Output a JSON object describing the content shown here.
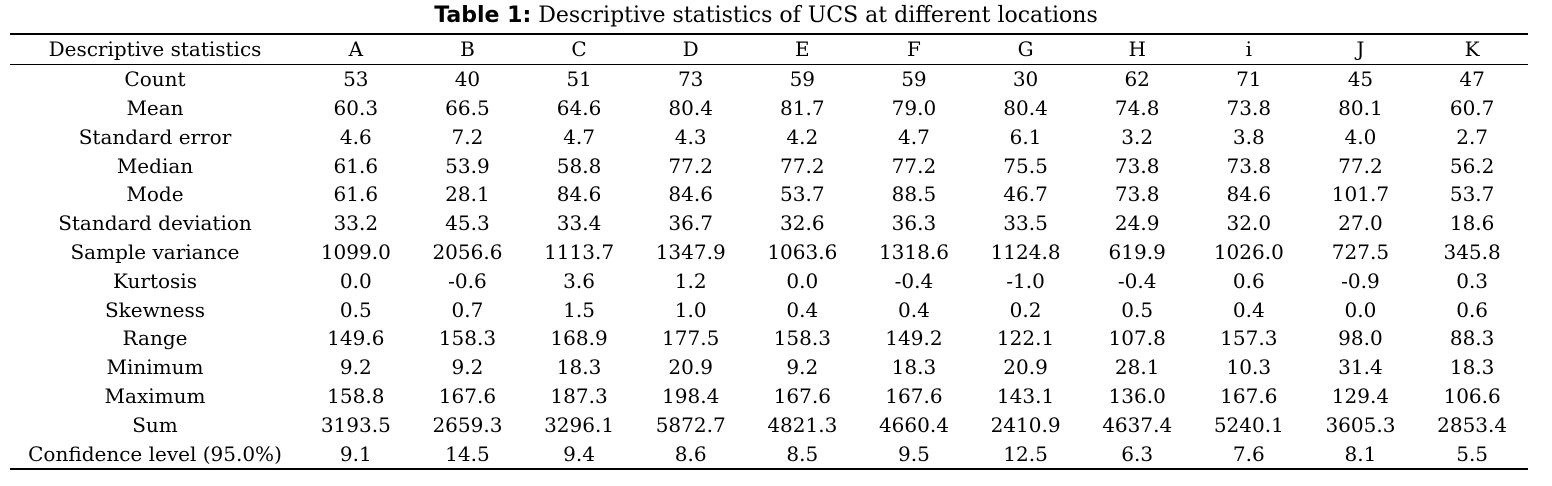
{
  "caption": {
    "lead": "Table 1:",
    "text": " Descriptive statistics of UCS at different locations"
  },
  "table": {
    "header_label": "Descriptive statistics",
    "columns": [
      "A",
      "B",
      "C",
      "D",
      "E",
      "F",
      "G",
      "H",
      "i",
      "J",
      "K"
    ],
    "rows": [
      {
        "label": "Count",
        "values": [
          "53",
          "40",
          "51",
          "73",
          "59",
          "59",
          "30",
          "62",
          "71",
          "45",
          "47"
        ]
      },
      {
        "label": "Mean",
        "values": [
          "60.3",
          "66.5",
          "64.6",
          "80.4",
          "81.7",
          "79.0",
          "80.4",
          "74.8",
          "73.8",
          "80.1",
          "60.7"
        ]
      },
      {
        "label": "Standard error",
        "values": [
          "4.6",
          "7.2",
          "4.7",
          "4.3",
          "4.2",
          "4.7",
          "6.1",
          "3.2",
          "3.8",
          "4.0",
          "2.7"
        ]
      },
      {
        "label": "Median",
        "values": [
          "61.6",
          "53.9",
          "58.8",
          "77.2",
          "77.2",
          "77.2",
          "75.5",
          "73.8",
          "73.8",
          "77.2",
          "56.2"
        ]
      },
      {
        "label": "Mode",
        "values": [
          "61.6",
          "28.1",
          "84.6",
          "84.6",
          "53.7",
          "88.5",
          "46.7",
          "73.8",
          "84.6",
          "101.7",
          "53.7"
        ]
      },
      {
        "label": "Standard deviation",
        "values": [
          "33.2",
          "45.3",
          "33.4",
          "36.7",
          "32.6",
          "36.3",
          "33.5",
          "24.9",
          "32.0",
          "27.0",
          "18.6"
        ]
      },
      {
        "label": "Sample variance",
        "values": [
          "1099.0",
          "2056.6",
          "1113.7",
          "1347.9",
          "1063.6",
          "1318.6",
          "1124.8",
          "619.9",
          "1026.0",
          "727.5",
          "345.8"
        ]
      },
      {
        "label": "Kurtosis",
        "values": [
          "0.0",
          "-0.6",
          "3.6",
          "1.2",
          "0.0",
          "-0.4",
          "-1.0",
          "-0.4",
          "0.6",
          "-0.9",
          "0.3"
        ]
      },
      {
        "label": "Skewness",
        "values": [
          "0.5",
          "0.7",
          "1.5",
          "1.0",
          "0.4",
          "0.4",
          "0.2",
          "0.5",
          "0.4",
          "0.0",
          "0.6"
        ]
      },
      {
        "label": "Range",
        "values": [
          "149.6",
          "158.3",
          "168.9",
          "177.5",
          "158.3",
          "149.2",
          "122.1",
          "107.8",
          "157.3",
          "98.0",
          "88.3"
        ]
      },
      {
        "label": "Minimum",
        "values": [
          "9.2",
          "9.2",
          "18.3",
          "20.9",
          "9.2",
          "18.3",
          "20.9",
          "28.1",
          "10.3",
          "31.4",
          "18.3"
        ]
      },
      {
        "label": "Maximum",
        "values": [
          "158.8",
          "167.6",
          "187.3",
          "198.4",
          "167.6",
          "167.6",
          "143.1",
          "136.0",
          "167.6",
          "129.4",
          "106.6"
        ]
      },
      {
        "label": "Sum",
        "values": [
          "3193.5",
          "2659.3",
          "3296.1",
          "5872.7",
          "4821.3",
          "4660.4",
          "2410.9",
          "4637.4",
          "5240.1",
          "3605.3",
          "2853.4"
        ]
      },
      {
        "label": "Confidence level (95.0%)",
        "values": [
          "9.1",
          "14.5",
          "9.4",
          "8.6",
          "8.5",
          "9.5",
          "12.5",
          "6.3",
          "7.6",
          "8.1",
          "5.5"
        ]
      }
    ]
  }
}
